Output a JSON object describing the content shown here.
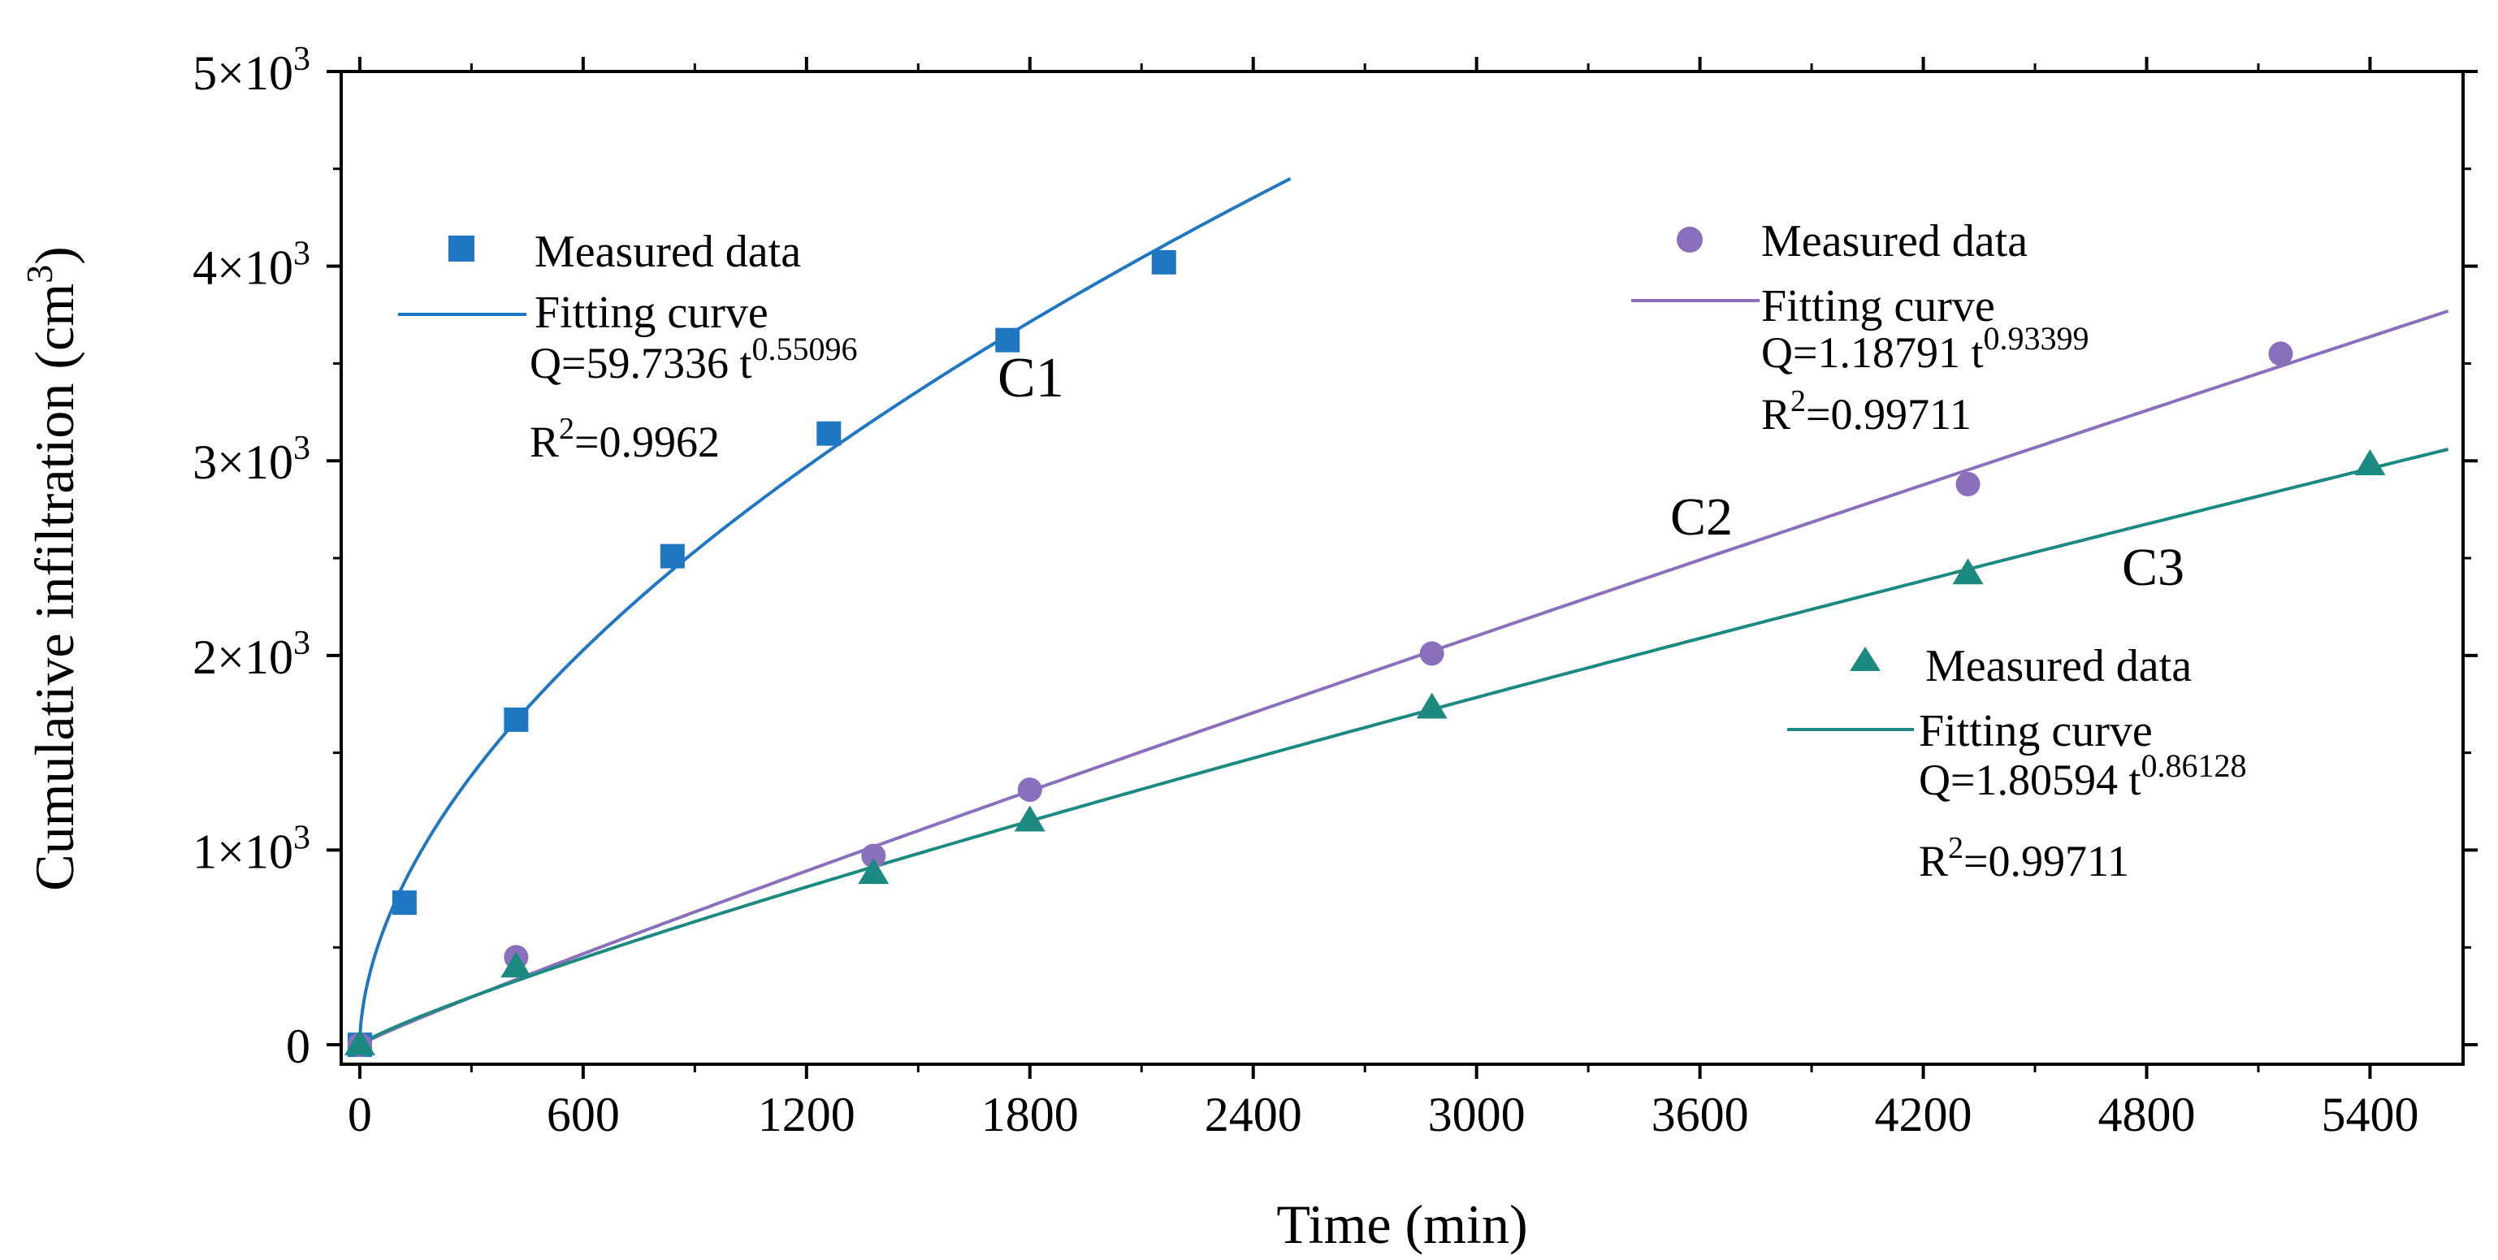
{
  "chart_data": {
    "type": "scatter",
    "title": "",
    "xlabel": "Time (min)",
    "ylabel": {
      "text": "Cumulative infiltration (cm",
      "sup": "3",
      "close": ")"
    },
    "xlim": [
      -50,
      5650
    ],
    "ylim": [
      -100,
      5000
    ],
    "x_ticks": [
      0,
      600,
      1200,
      1800,
      2400,
      3000,
      3600,
      4200,
      4800,
      5400
    ],
    "x_tick_labels": [
      "0",
      "600",
      "1200",
      "1800",
      "2400",
      "3000",
      "3600",
      "4200",
      "4800",
      "5400"
    ],
    "y_ticks": [
      0,
      1000,
      2000,
      3000,
      4000,
      5000
    ],
    "y_tick_labels": [
      {
        "base": "0",
        "sup": ""
      },
      {
        "base": "1×10",
        "sup": "3"
      },
      {
        "base": "2×10",
        "sup": "3"
      },
      {
        "base": "3×10",
        "sup": "3"
      },
      {
        "base": "4×10",
        "sup": "3"
      },
      {
        "base": "5×10",
        "sup": "3"
      }
    ],
    "series": [
      {
        "name": "C1",
        "color": "#1f77c4",
        "marker": "square",
        "x": [
          0,
          120,
          420,
          840,
          1260,
          1740,
          2160
        ],
        "y": [
          0,
          730,
          1670,
          2510,
          3140,
          3620,
          4020
        ],
        "fit": {
          "a": 59.7336,
          "b": 0.55096,
          "x_max": 2500
        },
        "label": "C1",
        "legend": {
          "measured": "Measured data",
          "fitting": "Fitting curve"
        },
        "equation": {
          "prefix": "Q=59.7336 t",
          "exp": "0.55096"
        },
        "r2": {
          "base": "R",
          "sup": "2",
          "rest": "=0.9962"
        }
      },
      {
        "name": "C2",
        "color": "#8a6fbd",
        "marker": "circle",
        "x": [
          0,
          420,
          1380,
          1800,
          2880,
          4320,
          5160
        ],
        "y": [
          0,
          450,
          970,
          1310,
          2010,
          2880,
          3550
        ],
        "fit": {
          "a": 1.18791,
          "b": 0.93399,
          "x_max": 5610
        },
        "label": "C2",
        "legend": {
          "measured": "Measured data",
          "fitting": "Fitting curve"
        },
        "equation": {
          "prefix": "Q=1.18791 t",
          "exp": "0.93399"
        },
        "r2": {
          "base": "R",
          "sup": "2",
          "rest": "=0.99711"
        }
      },
      {
        "name": "C3",
        "color": "#1c8a80",
        "marker": "triangle",
        "x": [
          0,
          420,
          1380,
          1800,
          2880,
          4320,
          5400
        ],
        "y": [
          0,
          400,
          880,
          1150,
          1730,
          2420,
          2980
        ],
        "fit": {
          "a": 1.80594,
          "b": 0.86128,
          "x_max": 5610
        },
        "label": "C3",
        "legend": {
          "measured": "Measured data",
          "fitting": "Fitting curve"
        },
        "equation": {
          "prefix": "Q=1.80594 t",
          "exp": "0.86128"
        },
        "r2": {
          "base": "R",
          "sup": "2",
          "rest": "=0.99711"
        }
      }
    ]
  }
}
